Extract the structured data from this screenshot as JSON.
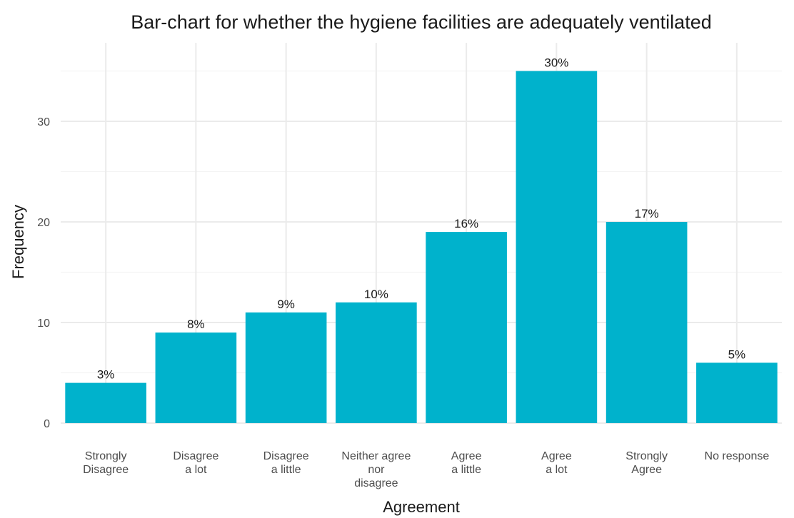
{
  "chart_data": {
    "type": "bar",
    "title": "Bar-chart for whether the hygiene facilities are adequately ventilated",
    "xlabel": "Agreement",
    "ylabel": "Frequency",
    "categories": [
      [
        "Strongly",
        "Disagree"
      ],
      [
        "Disagree",
        "a lot"
      ],
      [
        "Disagree",
        "a little"
      ],
      [
        "Neither agree",
        "nor",
        "disagree"
      ],
      [
        "Agree",
        "a little"
      ],
      [
        "Agree",
        "a lot"
      ],
      [
        "Strongly",
        "Agree"
      ],
      [
        "No response"
      ]
    ],
    "values": [
      4,
      9,
      11,
      12,
      19,
      35,
      20,
      6
    ],
    "labels": [
      "3%",
      "8%",
      "9%",
      "10%",
      "16%",
      "30%",
      "17%",
      "5%"
    ],
    "yticks": [
      0,
      10,
      20,
      30
    ],
    "ylim": [
      0,
      37
    ],
    "grid": true,
    "bar_color": "#00b2cc"
  }
}
